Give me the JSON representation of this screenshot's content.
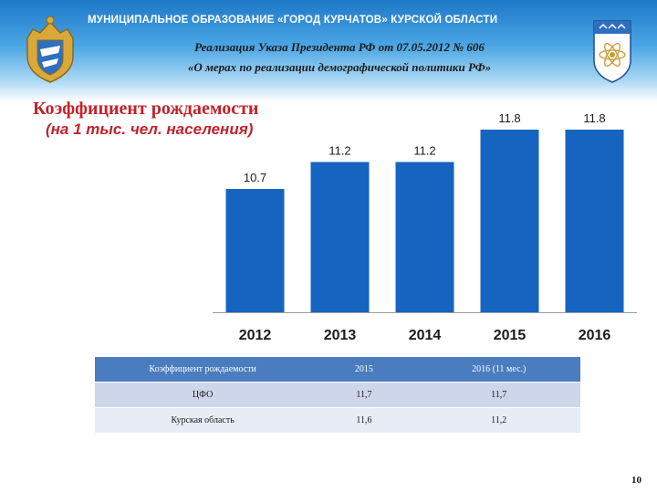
{
  "header": {
    "org_title": "МУНИЦИПАЛЬНОЕ  ОБРАЗОВАНИЕ  «ГОРОД КУРЧАТОВ»  КУРСКОЙ  ОБЛАСТИ",
    "decree_line1": "Реализация Указа Президента РФ от 07.05.2012 № 606",
    "decree_line2": "«О мерах по реализации  демографической политики РФ»"
  },
  "chart_data": {
    "type": "bar",
    "title": "Коэффициент рождаемости",
    "subtitle": "(на 1 тыс. чел. населения)",
    "categories": [
      "2012",
      "2013",
      "2014",
      "2015",
      "2016"
    ],
    "values": [
      10.7,
      11.2,
      11.2,
      11.8,
      11.8
    ],
    "data_labels": [
      "10.7",
      "11.2",
      "11.2",
      "11.8",
      "11.8"
    ],
    "bar_color": "#1565c0",
    "grid": false,
    "legend": "none"
  },
  "table": {
    "headers": [
      "Коэффициент рождаемости",
      "2015",
      "2016  (11 мес.)"
    ],
    "rows": [
      [
        "ЦФО",
        "11,7",
        "11,7"
      ],
      [
        "Курская область",
        "11,6",
        "11,2"
      ]
    ]
  },
  "page_number": "10"
}
